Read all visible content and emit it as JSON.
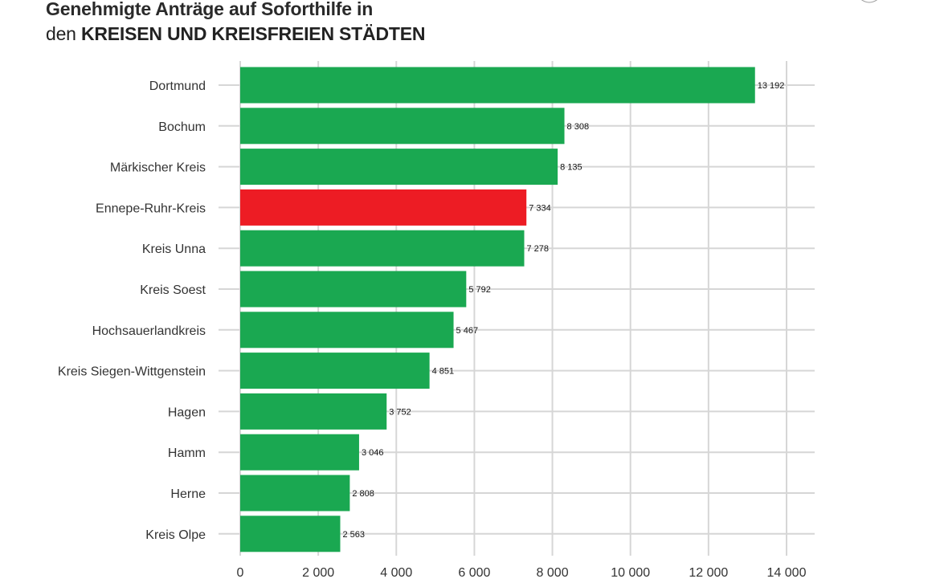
{
  "title": {
    "line1": "Genehmigte Anträge auf Soforthilfe in",
    "line2_prefix": "den ",
    "line2_strong": "KREISEN UND KREISFREIEN STÄDTEN"
  },
  "colors": {
    "bar_default": "#1aa851",
    "bar_highlight": "#ed1c24",
    "grid": "#d6d6d6",
    "text": "#333333"
  },
  "chart_data": {
    "type": "bar",
    "orientation": "horizontal",
    "title": "Genehmigte Anträge auf Soforthilfe in den KREISEN UND KREISFREIEN STÄDTEN",
    "categories": [
      "Dortmund",
      "Bochum",
      "Märkischer Kreis",
      "Ennepe-Ruhr-Kreis",
      "Kreis Unna",
      "Kreis Soest",
      "Hochsauerlandkreis",
      "Kreis Siegen-Wittgenstein",
      "Hagen",
      "Hamm",
      "Herne",
      "Kreis Olpe"
    ],
    "values": [
      13192,
      8308,
      8135,
      7334,
      7278,
      5792,
      5467,
      4851,
      3752,
      3046,
      2808,
      2563
    ],
    "value_labels": [
      "13 192",
      "8 308",
      "8 135",
      "7 334",
      "7 278",
      "5 792",
      "5 467",
      "4 851",
      "3 752",
      "3 046",
      "2 808",
      "2 563"
    ],
    "highlight": "Ennepe-Ruhr-Kreis",
    "xlim": [
      0,
      14000
    ],
    "xticks": [
      0,
      2000,
      4000,
      6000,
      8000,
      10000,
      12000,
      14000
    ],
    "xtick_labels": [
      "0",
      "2 000",
      "4 000",
      "6 000",
      "8 000",
      "10 000",
      "12 000",
      "14 000"
    ],
    "xlabel": "",
    "ylabel": "",
    "grid": true
  }
}
